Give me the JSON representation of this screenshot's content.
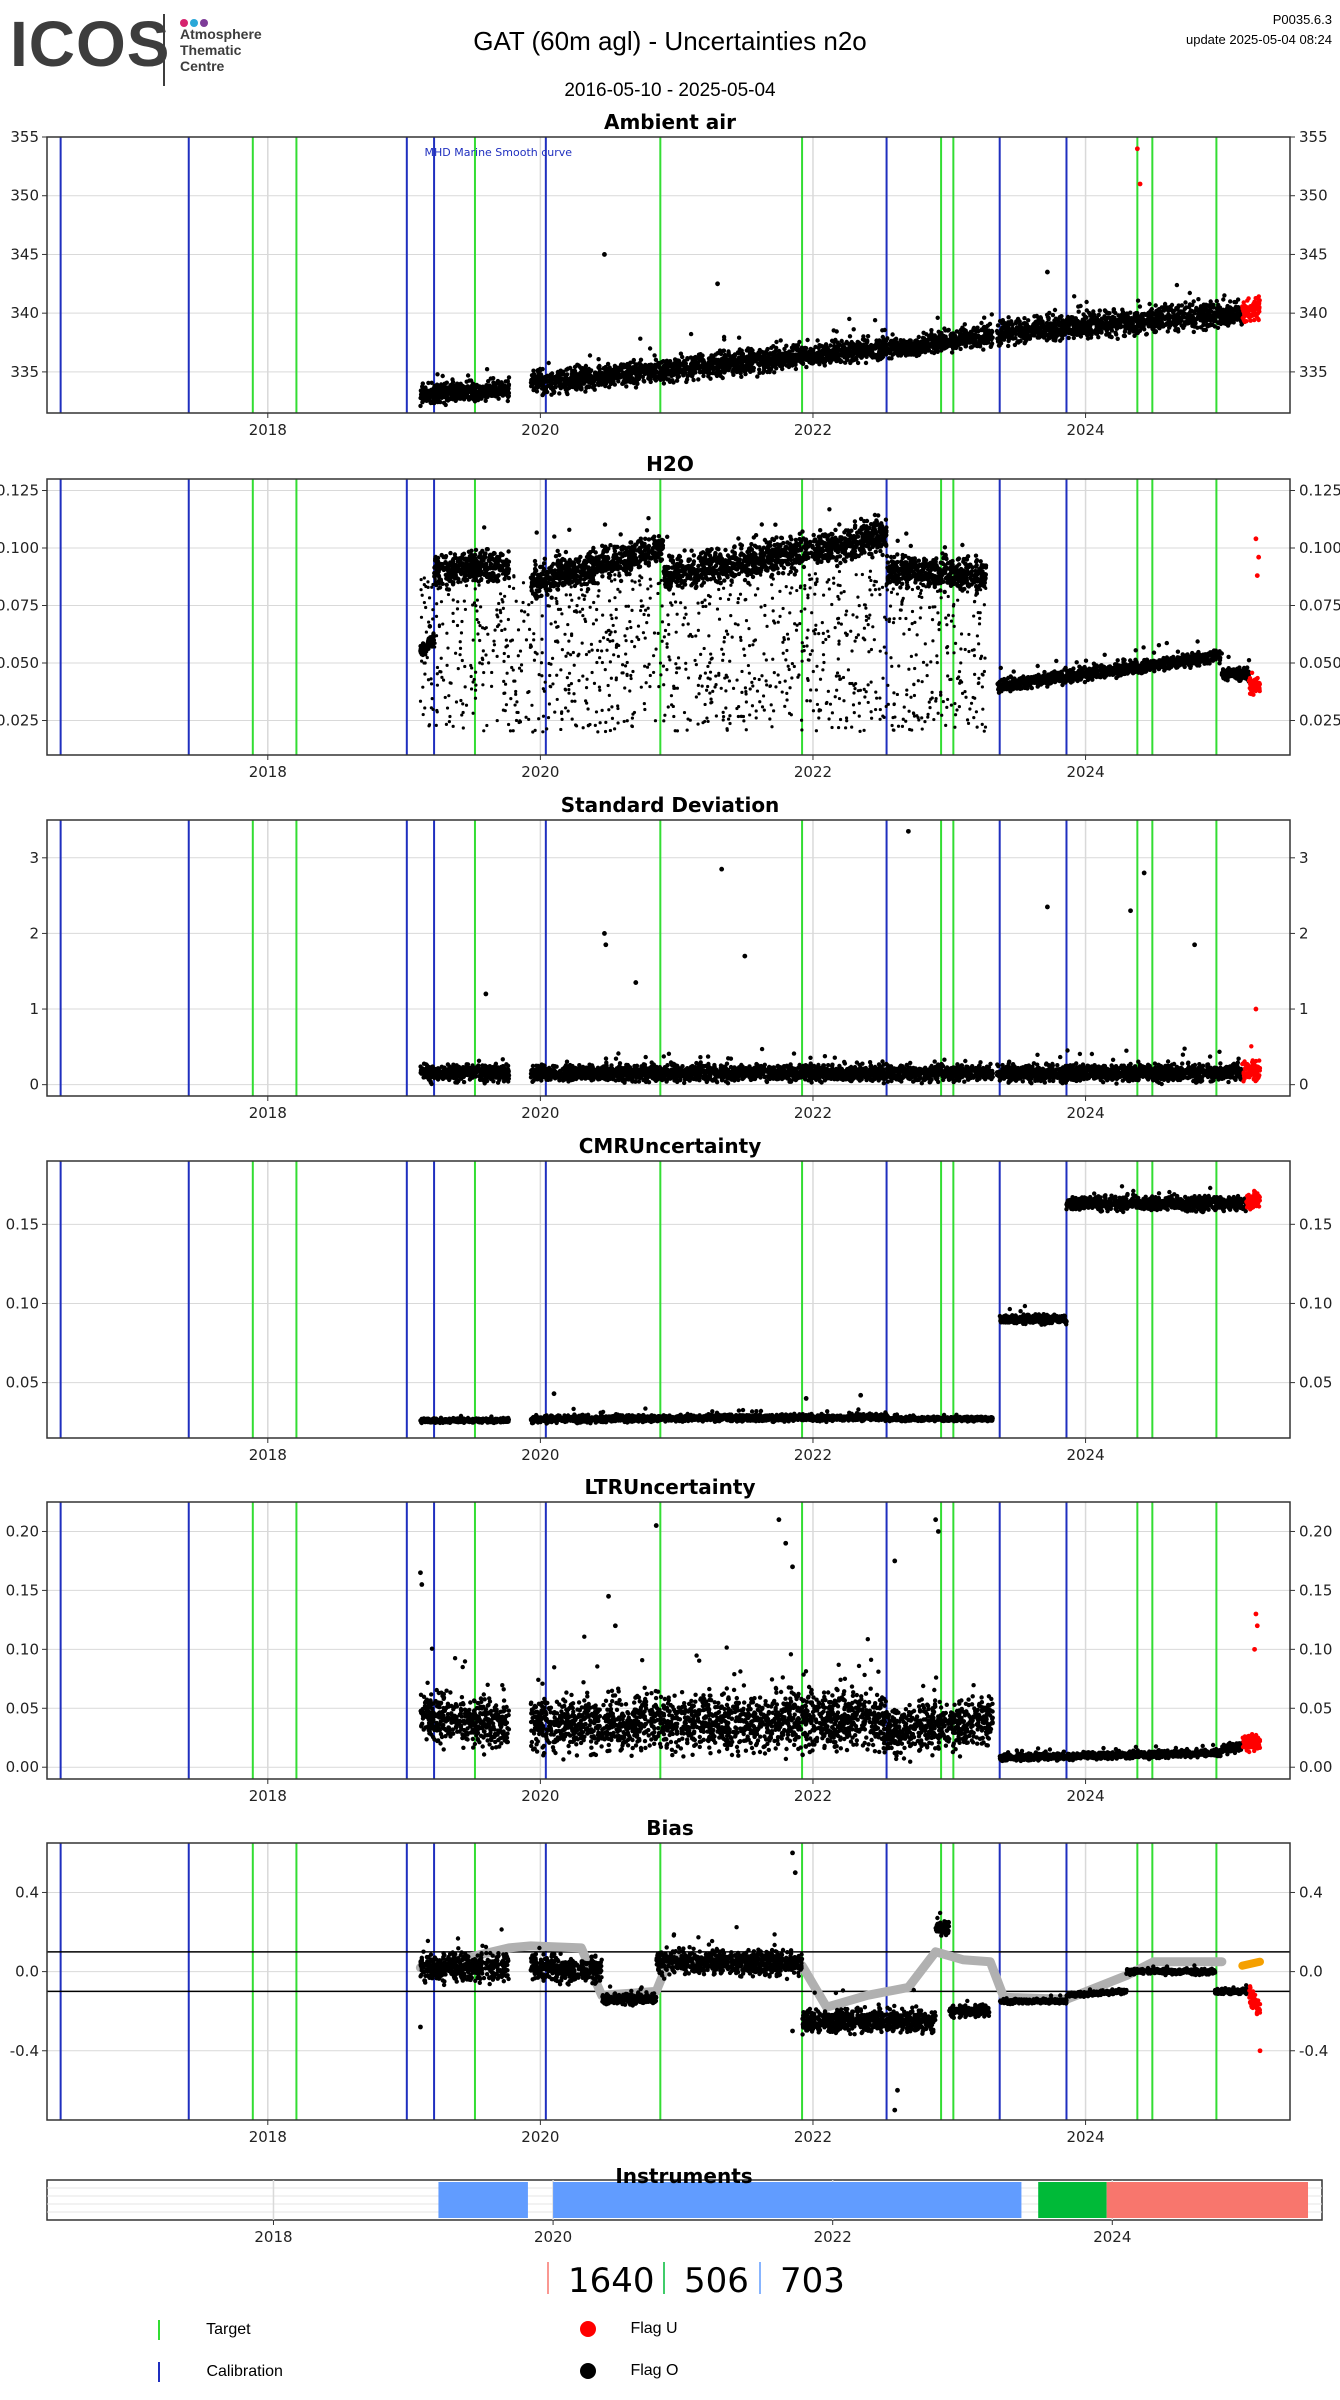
{
  "header": {
    "logo_text": "ICOS",
    "logo_sub": [
      "Atmosphere",
      "Thematic",
      "Centre"
    ],
    "logo_dot_colors": [
      "#d6246e",
      "#2aa8d8",
      "#7d3c98"
    ],
    "title": "GAT  (60m agl) - Uncertainties n2o",
    "date_range": "2016-05-10 - 2025-05-04",
    "version": "P0035.6.3",
    "update": "update  2025-05-04 08:24"
  },
  "colors": {
    "target": "#33dd33",
    "calibration": "#1f2fbf",
    "flag_u": "#ff0000",
    "flag_o": "#000000",
    "smooth": "#b0b0b0",
    "grid": "#d9d9d9",
    "orange": "#f5a000"
  },
  "target_lines": [
    2017.89,
    2018.21,
    2019.52,
    2020.88,
    2021.92,
    2022.94,
    2023.03,
    2024.38,
    2024.49,
    2024.96
  ],
  "calibration_lines": [
    2016.48,
    2017.42,
    2019.02,
    2019.22,
    2020.04,
    2022.54,
    2023.37,
    2023.86
  ],
  "chart_data": [
    {
      "id": "ambient",
      "type": "scatter",
      "title": "Ambient air",
      "ylim": [
        331.5,
        355
      ],
      "yticks": [
        335,
        340,
        345,
        350,
        355
      ],
      "tick_labels": [
        "335",
        "340",
        "345",
        "350",
        "355"
      ],
      "annotation": "MHD Marine Smooth curve",
      "segments": [
        {
          "x": [
            2019.12,
            2019.77
          ],
          "y": [
            333.0,
            333.5
          ],
          "spread": 1.2
        },
        {
          "x": [
            2019.93,
            2022.54
          ],
          "y": [
            334.0,
            337.0
          ],
          "spread": 1.4
        },
        {
          "x": [
            2022.54,
            2023.32
          ],
          "y": [
            337.0,
            338.0
          ],
          "spread": 1.2
        },
        {
          "x": [
            2023.35,
            2025.15
          ],
          "y": [
            338.3,
            340.0
          ],
          "spread": 1.5
        },
        {
          "x": [
            2025.15,
            2025.28
          ],
          "y": [
            340.0,
            340.5
          ],
          "spread": 1.3,
          "flag": "U"
        }
      ],
      "outliers": [
        [
          2020.47,
          345
        ],
        [
          2024.38,
          354
        ],
        [
          2024.4,
          351
        ],
        [
          2021.3,
          342.5
        ],
        [
          2023.72,
          343.5
        ]
      ]
    },
    {
      "id": "h2o",
      "type": "scatter",
      "title": "H2O",
      "ylim": [
        0.01,
        0.13
      ],
      "yticks": [
        0.025,
        0.05,
        0.075,
        0.1,
        0.125
      ],
      "tick_labels": [
        "0.025",
        "0.050",
        "0.075",
        "0.100",
        "0.125"
      ],
      "segments": [
        {
          "x": [
            2019.12,
            2019.22
          ],
          "y": [
            0.055,
            0.06
          ],
          "spread": 0.004
        },
        {
          "x": [
            2019.22,
            2019.77
          ],
          "y": [
            0.09,
            0.093
          ],
          "spread": 0.01
        },
        {
          "x": [
            2019.93,
            2020.9
          ],
          "y": [
            0.085,
            0.1
          ],
          "spread": 0.01
        },
        {
          "x": [
            2020.9,
            2022.54
          ],
          "y": [
            0.088,
            0.105
          ],
          "spread": 0.011
        },
        {
          "x": [
            2022.54,
            2023.27
          ],
          "y": [
            0.09,
            0.088
          ],
          "spread": 0.01
        },
        {
          "x": [
            2023.35,
            2025.0
          ],
          "y": [
            0.04,
            0.053
          ],
          "spread": 0.004
        },
        {
          "x": [
            2025.0,
            2025.2
          ],
          "y": [
            0.045,
            0.045
          ],
          "spread": 0.004
        },
        {
          "x": [
            2025.2,
            2025.28
          ],
          "y": [
            0.04,
            0.04
          ],
          "spread": 0.005,
          "flag": "U"
        }
      ],
      "sparse": {
        "x": [
          2019.12,
          2023.27
        ],
        "y": [
          0.02,
          0.09
        ]
      },
      "outliers": [
        [
          2025.25,
          0.104
        ],
        [
          2025.27,
          0.096
        ],
        [
          2025.26,
          0.088
        ]
      ]
    },
    {
      "id": "stddev",
      "type": "scatter",
      "title": "Standard Deviation",
      "ylim": [
        -0.15,
        3.5
      ],
      "yticks": [
        0,
        1,
        2,
        3
      ],
      "tick_labels": [
        "0",
        "1",
        "2",
        "3"
      ],
      "segments": [
        {
          "x": [
            2019.12,
            2019.77
          ],
          "y": [
            0.15,
            0.15
          ],
          "spread": 0.15
        },
        {
          "x": [
            2019.93,
            2023.32
          ],
          "y": [
            0.15,
            0.15
          ],
          "spread": 0.15
        },
        {
          "x": [
            2023.35,
            2025.15
          ],
          "y": [
            0.15,
            0.15
          ],
          "spread": 0.15
        },
        {
          "x": [
            2025.15,
            2025.28
          ],
          "y": [
            0.2,
            0.2
          ],
          "spread": 0.2,
          "flag": "U"
        }
      ],
      "outliers": [
        [
          2020.47,
          2.0
        ],
        [
          2020.48,
          1.85
        ],
        [
          2021.33,
          2.85
        ],
        [
          2022.7,
          3.35
        ],
        [
          2023.72,
          2.35
        ],
        [
          2024.33,
          2.3
        ],
        [
          2024.43,
          2.8
        ],
        [
          2024.8,
          1.85
        ],
        [
          2021.5,
          1.7
        ],
        [
          2019.6,
          1.2
        ],
        [
          2020.7,
          1.35
        ],
        [
          2025.25,
          1.0
        ]
      ]
    },
    {
      "id": "cmr",
      "type": "scatter",
      "title": "CMRUncertainty",
      "ylim": [
        0.015,
        0.19
      ],
      "yticks": [
        0.05,
        0.1,
        0.15
      ],
      "tick_labels": [
        "0.05",
        "0.10",
        "0.15"
      ],
      "segments": [
        {
          "x": [
            2019.12,
            2019.77
          ],
          "y": [
            0.026,
            0.026
          ],
          "spread": 0.002
        },
        {
          "x": [
            2019.93,
            2022.54
          ],
          "y": [
            0.027,
            0.028
          ],
          "spread": 0.003
        },
        {
          "x": [
            2022.54,
            2023.32
          ],
          "y": [
            0.027,
            0.027
          ],
          "spread": 0.002
        },
        {
          "x": [
            2023.37,
            2023.86
          ],
          "y": [
            0.09,
            0.09
          ],
          "spread": 0.004
        },
        {
          "x": [
            2023.86,
            2025.18
          ],
          "y": [
            0.163,
            0.163
          ],
          "spread": 0.006
        },
        {
          "x": [
            2025.18,
            2025.28
          ],
          "y": [
            0.165,
            0.165
          ],
          "spread": 0.008,
          "flag": "U"
        }
      ],
      "outliers": [
        [
          2020.1,
          0.043
        ],
        [
          2021.95,
          0.04
        ],
        [
          2022.35,
          0.042
        ]
      ]
    },
    {
      "id": "ltr",
      "type": "scatter",
      "title": "LTRUncertainty",
      "ylim": [
        -0.01,
        0.225
      ],
      "yticks": [
        0,
        0.05,
        0.1,
        0.15,
        0.2
      ],
      "tick_labels": [
        "0.00",
        "0.05",
        "0.10",
        "0.15",
        "0.20"
      ],
      "segments": [
        {
          "x": [
            2019.12,
            2019.77
          ],
          "y": [
            0.045,
            0.035
          ],
          "spread": 0.03
        },
        {
          "x": [
            2019.93,
            2022.54
          ],
          "y": [
            0.035,
            0.04
          ],
          "spread": 0.035
        },
        {
          "x": [
            2022.54,
            2023.32
          ],
          "y": [
            0.03,
            0.04
          ],
          "spread": 0.03
        },
        {
          "x": [
            2023.37,
            2025.0
          ],
          "y": [
            0.008,
            0.012
          ],
          "spread": 0.004
        },
        {
          "x": [
            2025.0,
            2025.15
          ],
          "y": [
            0.015,
            0.018
          ],
          "spread": 0.006
        },
        {
          "x": [
            2025.15,
            2025.28
          ],
          "y": [
            0.02,
            0.02
          ],
          "spread": 0.01,
          "flag": "U"
        }
      ],
      "outliers": [
        [
          2019.12,
          0.165
        ],
        [
          2019.13,
          0.155
        ],
        [
          2020.85,
          0.205
        ],
        [
          2021.75,
          0.21
        ],
        [
          2021.8,
          0.19
        ],
        [
          2021.85,
          0.17
        ],
        [
          2022.9,
          0.21
        ],
        [
          2022.92,
          0.2
        ],
        [
          2022.6,
          0.175
        ],
        [
          2025.25,
          0.13
        ],
        [
          2025.26,
          0.12
        ],
        [
          2025.24,
          0.1
        ],
        [
          2020.5,
          0.145
        ],
        [
          2020.55,
          0.12
        ]
      ]
    },
    {
      "id": "bias",
      "type": "scatter",
      "title": "Bias",
      "ylim": [
        -0.75,
        0.65
      ],
      "yticks": [
        -0.4,
        0,
        0.4
      ],
      "tick_labels": [
        "-0.4",
        "0.0",
        "0.4"
      ],
      "hlines": [
        0.1,
        -0.1
      ],
      "segments": [
        {
          "x": [
            2019.12,
            2019.77
          ],
          "y": [
            0.02,
            0.02
          ],
          "spread": 0.1
        },
        {
          "x": [
            2019.93,
            2020.45
          ],
          "y": [
            0.02,
            0.0
          ],
          "spread": 0.09
        },
        {
          "x": [
            2020.45,
            2020.85
          ],
          "y": [
            -0.14,
            -0.14
          ],
          "spread": 0.04
        },
        {
          "x": [
            2020.85,
            2021.92
          ],
          "y": [
            0.05,
            0.04
          ],
          "spread": 0.09
        },
        {
          "x": [
            2021.92,
            2022.9
          ],
          "y": [
            -0.25,
            -0.25
          ],
          "spread": 0.08
        },
        {
          "x": [
            2022.9,
            2023.0
          ],
          "y": [
            0.22,
            0.22
          ],
          "spread": 0.05
        },
        {
          "x": [
            2023.0,
            2023.3
          ],
          "y": [
            -0.2,
            -0.2
          ],
          "spread": 0.04
        },
        {
          "x": [
            2023.37,
            2023.86
          ],
          "y": [
            -0.15,
            -0.15
          ],
          "spread": 0.015
        },
        {
          "x": [
            2023.86,
            2024.3
          ],
          "y": [
            -0.12,
            -0.1
          ],
          "spread": 0.015
        },
        {
          "x": [
            2024.3,
            2024.95
          ],
          "y": [
            0.0,
            0.0
          ],
          "spread": 0.02
        },
        {
          "x": [
            2024.95,
            2025.2
          ],
          "y": [
            -0.1,
            -0.1
          ],
          "spread": 0.02
        },
        {
          "x": [
            2025.2,
            2025.28
          ],
          "y": [
            -0.12,
            -0.2
          ],
          "spread": 0.06,
          "flag": "U"
        }
      ],
      "smooth": [
        [
          2019.12,
          0.02
        ],
        [
          2019.4,
          0.06
        ],
        [
          2019.77,
          0.12
        ],
        [
          2019.93,
          0.13
        ],
        [
          2020.3,
          0.12
        ],
        [
          2020.45,
          -0.12
        ],
        [
          2020.85,
          -0.1
        ],
        [
          2020.95,
          0.07
        ],
        [
          2021.5,
          0.02
        ],
        [
          2021.92,
          0.03
        ],
        [
          2022.1,
          -0.18
        ],
        [
          2022.4,
          -0.12
        ],
        [
          2022.7,
          -0.08
        ],
        [
          2022.9,
          0.1
        ],
        [
          2023.1,
          0.06
        ],
        [
          2023.3,
          0.05
        ],
        [
          2023.4,
          -0.13
        ],
        [
          2023.86,
          -0.14
        ],
        [
          2024.3,
          -0.02
        ],
        [
          2024.5,
          0.05
        ],
        [
          2025.0,
          0.05
        ]
      ],
      "orange": [
        [
          2025.15,
          0.03
        ],
        [
          2025.28,
          0.05
        ]
      ],
      "outliers": [
        [
          2021.85,
          0.6
        ],
        [
          2021.87,
          0.5
        ],
        [
          2022.6,
          -0.7
        ],
        [
          2022.62,
          -0.6
        ],
        [
          2019.12,
          -0.28
        ],
        [
          2021.85,
          -0.3
        ],
        [
          2025.28,
          -0.4
        ]
      ]
    }
  ],
  "x_axis": {
    "xlim": [
      2016.38,
      2025.5
    ],
    "ticks": [
      2018,
      2020,
      2022,
      2024
    ],
    "tick_labels": [
      "2018",
      "2020",
      "2022",
      "2024"
    ]
  },
  "instruments": {
    "title": "Instruments",
    "xlim": [
      2016.38,
      2025.5
    ],
    "ticks": [
      2018,
      2020,
      2022,
      2024
    ],
    "tick_labels": [
      "2018",
      "2020",
      "2022",
      "2024"
    ],
    "bars": [
      {
        "start": 2019.18,
        "end": 2019.82,
        "color": "#619cff",
        "name": "703"
      },
      {
        "start": 2020.0,
        "end": 2023.35,
        "color": "#619cff",
        "name": "703"
      },
      {
        "start": 2023.47,
        "end": 2023.96,
        "color": "#00ba38",
        "name": "506"
      },
      {
        "start": 2023.96,
        "end": 2025.4,
        "color": "#f8766d",
        "name": "1640"
      }
    ],
    "legend": [
      {
        "label": "1640",
        "color": "#f8766d"
      },
      {
        "label": "506",
        "color": "#00ba38"
      },
      {
        "label": "703",
        "color": "#619cff"
      }
    ]
  },
  "legend": {
    "target": "Target",
    "calibration": "Calibration",
    "flag_u": "Flag U",
    "flag_o": "Flag O"
  }
}
